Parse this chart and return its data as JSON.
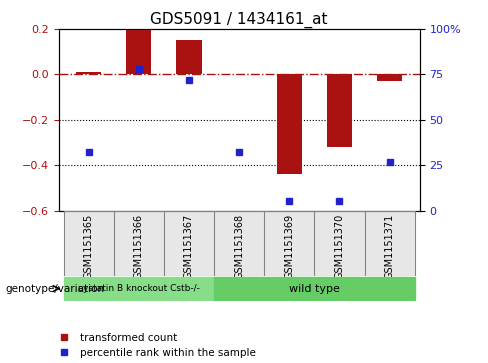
{
  "title": "GDS5091 / 1434161_at",
  "samples": [
    "GSM1151365",
    "GSM1151366",
    "GSM1151367",
    "GSM1151368",
    "GSM1151369",
    "GSM1151370",
    "GSM1151371"
  ],
  "red_bars": [
    0.01,
    0.2,
    0.15,
    0.0,
    -0.44,
    -0.32,
    -0.03
  ],
  "blue_percentiles": [
    32,
    78,
    72,
    32,
    5,
    5,
    27
  ],
  "ylim_left": [
    -0.6,
    0.2
  ],
  "ylim_right": [
    0,
    100
  ],
  "left_yticks": [
    -0.6,
    -0.4,
    -0.2,
    0.0,
    0.2
  ],
  "right_yticks": [
    0,
    25,
    50,
    75,
    100
  ],
  "right_ytick_labels": [
    "0",
    "25",
    "50",
    "75",
    "100%"
  ],
  "group1_label": "cystatin B knockout Cstb-/-",
  "group2_label": "wild type",
  "group1_count": 3,
  "group2_count": 4,
  "bar_color": "#aa1111",
  "dot_color": "#2222cc",
  "group1_color": "#88dd88",
  "group2_color": "#66cc66",
  "bg_color": "#ffffff",
  "legend1": "transformed count",
  "legend2": "percentile rank within the sample",
  "hline_y": 0.0,
  "dotted_lines": [
    -0.2,
    -0.4
  ]
}
